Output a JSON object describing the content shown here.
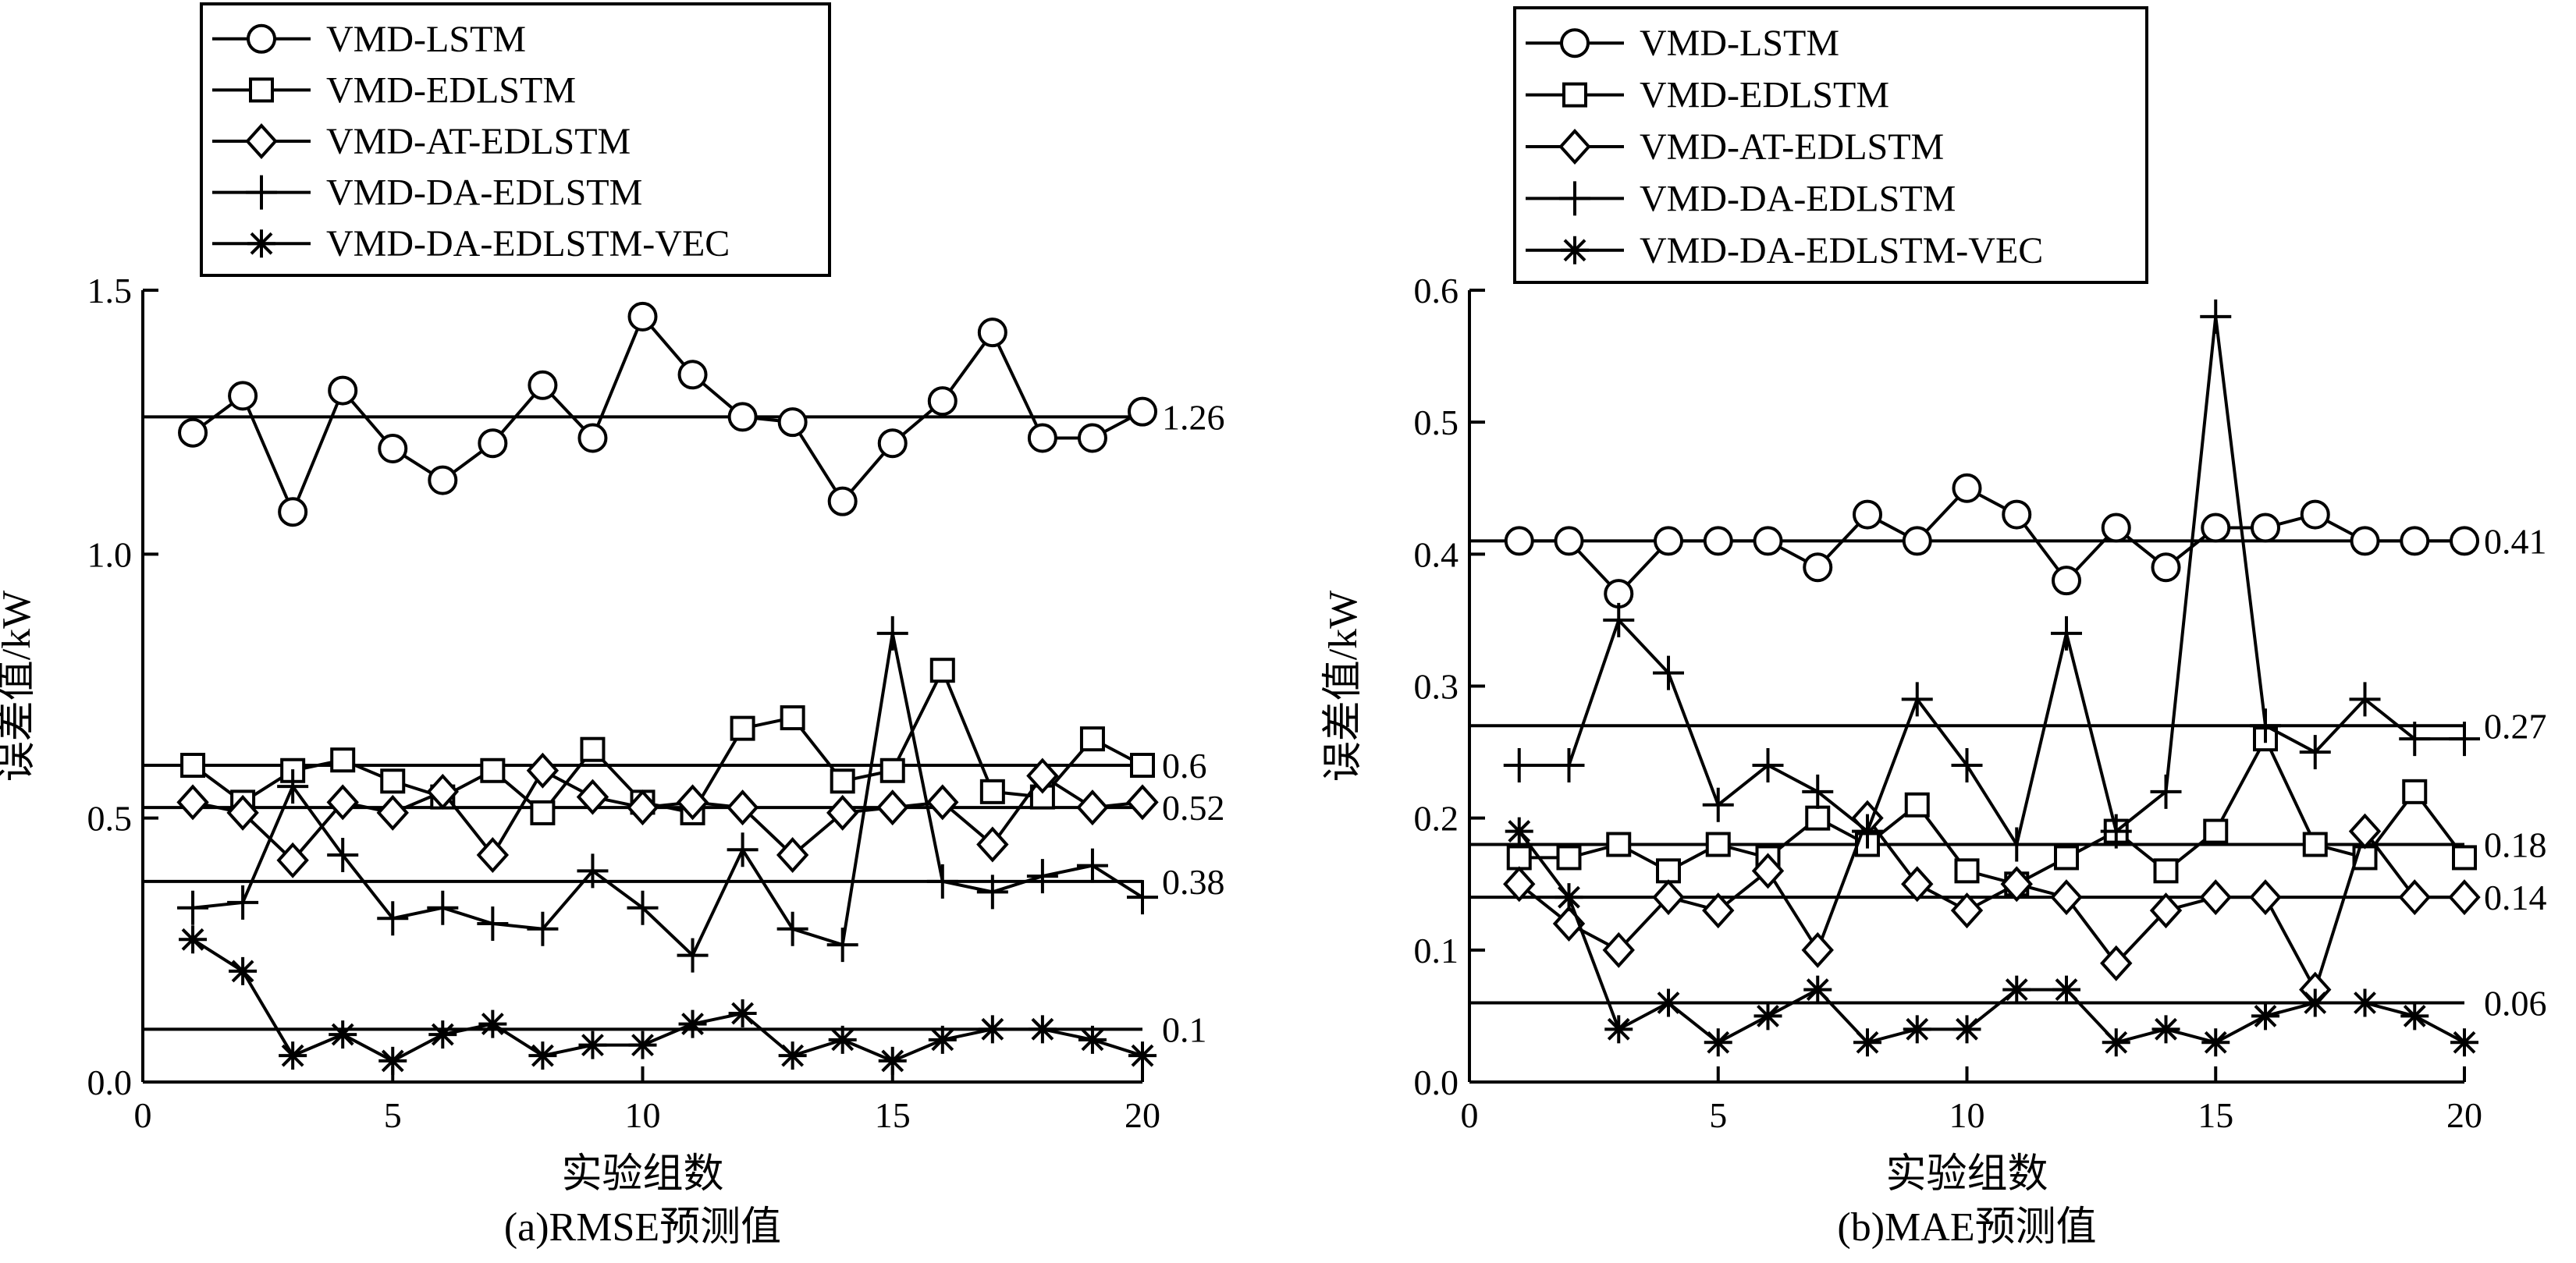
{
  "chart_data": [
    {
      "type": "line",
      "caption": "(a)RMSE预测值",
      "xlabel": "实验组数",
      "ylabel": "误差值/kW",
      "xlim": [
        0,
        20
      ],
      "ylim": [
        0,
        1.5
      ],
      "xticks": [
        0,
        5,
        10,
        15,
        20
      ],
      "xtick_labels": [
        "0",
        "5",
        "10",
        "15",
        "20"
      ],
      "yticks": [
        0,
        0.5,
        1.0,
        1.5
      ],
      "ytick_labels": [
        "0.0",
        "0.5",
        "1.0",
        "1.5"
      ],
      "legend_position": "top-left",
      "x": [
        1,
        2,
        3,
        4,
        5,
        6,
        7,
        8,
        9,
        10,
        11,
        12,
        13,
        14,
        15,
        16,
        17,
        18,
        19,
        20
      ],
      "series": [
        {
          "name": "VMD-LSTM",
          "marker": "circle",
          "values": [
            1.23,
            1.3,
            1.08,
            1.31,
            1.2,
            1.14,
            1.21,
            1.32,
            1.22,
            1.45,
            1.34,
            1.26,
            1.25,
            1.1,
            1.21,
            1.29,
            1.42,
            1.22,
            1.22,
            1.27
          ]
        },
        {
          "name": "VMD-EDLSTM",
          "marker": "square",
          "values": [
            0.6,
            0.53,
            0.59,
            0.61,
            0.57,
            0.54,
            0.59,
            0.51,
            0.63,
            0.53,
            0.51,
            0.67,
            0.69,
            0.57,
            0.59,
            0.78,
            0.55,
            0.54,
            0.65,
            0.6
          ]
        },
        {
          "name": "VMD-AT-EDLSTM",
          "marker": "diamond",
          "values": [
            0.53,
            0.51,
            0.42,
            0.53,
            0.51,
            0.55,
            0.43,
            0.59,
            0.54,
            0.52,
            0.53,
            0.52,
            0.43,
            0.51,
            0.52,
            0.53,
            0.45,
            0.58,
            0.52,
            0.53
          ]
        },
        {
          "name": "VMD-DA-EDLSTM",
          "marker": "plus",
          "values": [
            0.33,
            0.34,
            0.56,
            0.43,
            0.31,
            0.33,
            0.3,
            0.29,
            0.4,
            0.33,
            0.24,
            0.44,
            0.29,
            0.26,
            0.85,
            0.38,
            0.36,
            0.39,
            0.41,
            0.35
          ]
        },
        {
          "name": "VMD-DA-EDLSTM-VEC",
          "marker": "asterisk",
          "values": [
            0.27,
            0.21,
            0.05,
            0.09,
            0.04,
            0.09,
            0.11,
            0.05,
            0.07,
            0.07,
            0.11,
            0.13,
            0.05,
            0.08,
            0.04,
            0.08,
            0.1,
            0.1,
            0.08,
            0.05
          ]
        }
      ],
      "reference_lines": [
        {
          "value": 1.26,
          "label": "1.26"
        },
        {
          "value": 0.6,
          "label": "0.6"
        },
        {
          "value": 0.52,
          "label": "0.52"
        },
        {
          "value": 0.38,
          "label": "0.38"
        },
        {
          "value": 0.1,
          "label": "0.1"
        }
      ]
    },
    {
      "type": "line",
      "caption": "(b)MAE预测值",
      "xlabel": "实验组数",
      "ylabel": "误差值/kW",
      "xlim": [
        0,
        20
      ],
      "ylim": [
        0,
        0.6
      ],
      "xticks": [
        0,
        5,
        10,
        15,
        20
      ],
      "xtick_labels": [
        "0",
        "5",
        "10",
        "15",
        "20"
      ],
      "yticks": [
        0,
        0.1,
        0.2,
        0.3,
        0.4,
        0.5,
        0.6
      ],
      "ytick_labels": [
        "0.0",
        "0.1",
        "0.2",
        "0.3",
        "0.4",
        "0.5",
        "0.6"
      ],
      "legend_position": "top-left",
      "x": [
        1,
        2,
        3,
        4,
        5,
        6,
        7,
        8,
        9,
        10,
        11,
        12,
        13,
        14,
        15,
        16,
        17,
        18,
        19,
        20
      ],
      "series": [
        {
          "name": "VMD-LSTM",
          "marker": "circle",
          "values": [
            0.41,
            0.41,
            0.37,
            0.41,
            0.41,
            0.41,
            0.39,
            0.43,
            0.41,
            0.45,
            0.43,
            0.38,
            0.42,
            0.39,
            0.42,
            0.42,
            0.43,
            0.41,
            0.41,
            0.41
          ]
        },
        {
          "name": "VMD-EDLSTM",
          "marker": "square",
          "values": [
            0.17,
            0.17,
            0.18,
            0.16,
            0.18,
            0.17,
            0.2,
            0.18,
            0.21,
            0.16,
            0.15,
            0.17,
            0.19,
            0.16,
            0.19,
            0.26,
            0.18,
            0.17,
            0.22,
            0.17
          ]
        },
        {
          "name": "VMD-AT-EDLSTM",
          "marker": "diamond",
          "values": [
            0.15,
            0.12,
            0.1,
            0.14,
            0.13,
            0.16,
            0.1,
            0.2,
            0.15,
            0.13,
            0.15,
            0.14,
            0.09,
            0.13,
            0.14,
            0.14,
            0.07,
            0.19,
            0.14,
            0.14
          ]
        },
        {
          "name": "VMD-DA-EDLSTM",
          "marker": "plus",
          "values": [
            0.24,
            0.24,
            0.35,
            0.31,
            0.21,
            0.24,
            0.22,
            0.19,
            0.29,
            0.24,
            0.18,
            0.34,
            0.19,
            0.22,
            0.58,
            0.27,
            0.25,
            0.29,
            0.26,
            0.26
          ]
        },
        {
          "name": "VMD-DA-EDLSTM-VEC",
          "marker": "asterisk",
          "values": [
            0.19,
            0.14,
            0.04,
            0.06,
            0.03,
            0.05,
            0.07,
            0.03,
            0.04,
            0.04,
            0.07,
            0.07,
            0.03,
            0.04,
            0.03,
            0.05,
            0.06,
            0.06,
            0.05,
            0.03
          ]
        }
      ],
      "reference_lines": [
        {
          "value": 0.41,
          "label": "0.41"
        },
        {
          "value": 0.27,
          "label": "0.27"
        },
        {
          "value": 0.18,
          "label": "0.18"
        },
        {
          "value": 0.14,
          "label": "0.14"
        },
        {
          "value": 0.06,
          "label": "0.06"
        }
      ]
    }
  ]
}
